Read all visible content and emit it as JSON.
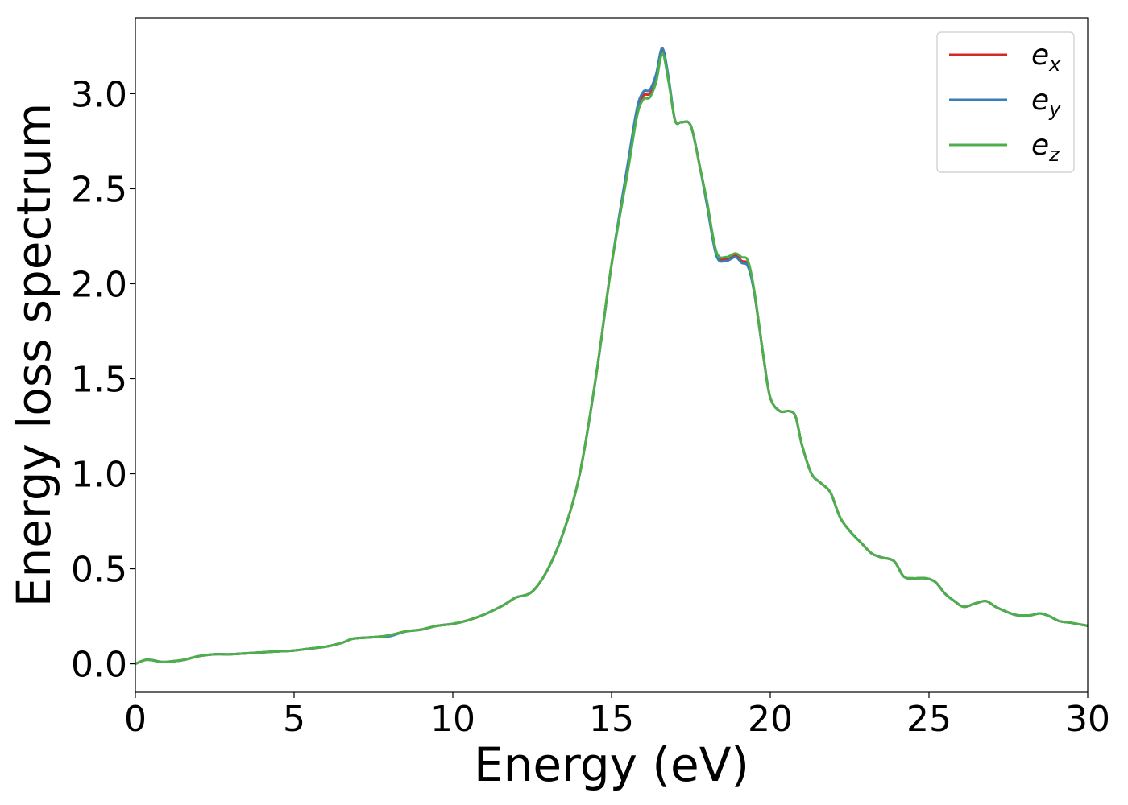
{
  "chart_data": {
    "type": "line",
    "title": "",
    "xlabel": "Energy (eV)",
    "ylabel": "Energy loss spectrum",
    "xlim": [
      0,
      30
    ],
    "ylim": [
      -0.15,
      3.4
    ],
    "xticks": [
      0,
      5,
      10,
      15,
      20,
      25,
      30
    ],
    "xtick_labels": [
      "0",
      "5",
      "10",
      "15",
      "20",
      "25",
      "30"
    ],
    "yticks": [
      0.0,
      0.5,
      1.0,
      1.5,
      2.0,
      2.5,
      3.0
    ],
    "ytick_labels": [
      "0.0",
      "0.5",
      "1.0",
      "1.5",
      "2.0",
      "2.5",
      "3.0"
    ],
    "grid": false,
    "legend_position": "top-right",
    "x": [
      0,
      0.3,
      0.5,
      0.8,
      1.0,
      1.5,
      2.0,
      2.5,
      3.0,
      3.5,
      4.0,
      4.5,
      5.0,
      5.5,
      6.0,
      6.5,
      6.8,
      7.0,
      7.5,
      8.0,
      8.5,
      9.0,
      9.5,
      10.0,
      10.5,
      11.0,
      11.5,
      11.8,
      12.0,
      12.5,
      13.0,
      13.5,
      14.0,
      14.5,
      15.0,
      15.5,
      15.8,
      16.0,
      16.2,
      16.4,
      16.6,
      16.8,
      17.0,
      17.2,
      17.5,
      17.8,
      18.0,
      18.3,
      18.6,
      18.9,
      19.1,
      19.3,
      19.5,
      19.8,
      20.0,
      20.3,
      20.6,
      20.8,
      21.0,
      21.3,
      21.6,
      21.9,
      22.2,
      22.5,
      22.9,
      23.2,
      23.5,
      23.9,
      24.2,
      24.5,
      24.9,
      25.2,
      25.5,
      25.8,
      26.1,
      26.5,
      26.8,
      27.1,
      27.5,
      27.8,
      28.2,
      28.5,
      28.8,
      29.1,
      29.5,
      30.0
    ],
    "series": [
      {
        "name": "e_x",
        "label_base": "e",
        "label_sub": "x",
        "color": "#d62728",
        "values": [
          0.0,
          0.02,
          0.02,
          0.01,
          0.01,
          0.02,
          0.04,
          0.05,
          0.05,
          0.055,
          0.06,
          0.065,
          0.07,
          0.08,
          0.09,
          0.11,
          0.13,
          0.135,
          0.14,
          0.15,
          0.17,
          0.18,
          0.2,
          0.21,
          0.23,
          0.26,
          0.3,
          0.33,
          0.35,
          0.38,
          0.5,
          0.7,
          1.0,
          1.5,
          2.1,
          2.6,
          2.9,
          2.99,
          3.0,
          3.08,
          3.23,
          3.07,
          2.86,
          2.85,
          2.83,
          2.6,
          2.43,
          2.16,
          2.13,
          2.15,
          2.12,
          2.1,
          1.95,
          1.6,
          1.4,
          1.33,
          1.33,
          1.3,
          1.15,
          1.0,
          0.95,
          0.9,
          0.77,
          0.7,
          0.63,
          0.58,
          0.56,
          0.54,
          0.46,
          0.45,
          0.45,
          0.43,
          0.37,
          0.33,
          0.3,
          0.32,
          0.33,
          0.3,
          0.27,
          0.255,
          0.255,
          0.265,
          0.25,
          0.225,
          0.215,
          0.2
        ]
      },
      {
        "name": "e_y",
        "label_base": "e",
        "label_sub": "y",
        "color": "#3a7eb8",
        "values": [
          0.0,
          0.02,
          0.02,
          0.01,
          0.01,
          0.02,
          0.04,
          0.05,
          0.05,
          0.055,
          0.06,
          0.065,
          0.07,
          0.08,
          0.09,
          0.11,
          0.13,
          0.135,
          0.14,
          0.145,
          0.17,
          0.18,
          0.2,
          0.21,
          0.23,
          0.26,
          0.3,
          0.33,
          0.35,
          0.38,
          0.5,
          0.7,
          1.0,
          1.5,
          2.1,
          2.62,
          2.92,
          3.01,
          3.02,
          3.1,
          3.24,
          3.08,
          2.86,
          2.85,
          2.83,
          2.6,
          2.42,
          2.15,
          2.12,
          2.14,
          2.11,
          2.09,
          1.95,
          1.6,
          1.4,
          1.33,
          1.33,
          1.3,
          1.15,
          1.0,
          0.95,
          0.9,
          0.77,
          0.7,
          0.63,
          0.58,
          0.56,
          0.54,
          0.46,
          0.45,
          0.45,
          0.43,
          0.37,
          0.33,
          0.3,
          0.32,
          0.33,
          0.3,
          0.27,
          0.255,
          0.255,
          0.265,
          0.25,
          0.225,
          0.215,
          0.2
        ]
      },
      {
        "name": "e_z",
        "label_base": "e",
        "label_sub": "z",
        "color": "#4daf4a",
        "values": [
          0.0,
          0.02,
          0.02,
          0.01,
          0.01,
          0.02,
          0.04,
          0.05,
          0.05,
          0.055,
          0.06,
          0.065,
          0.07,
          0.08,
          0.09,
          0.11,
          0.13,
          0.135,
          0.14,
          0.15,
          0.17,
          0.18,
          0.2,
          0.21,
          0.23,
          0.26,
          0.3,
          0.33,
          0.35,
          0.38,
          0.5,
          0.7,
          1.0,
          1.5,
          2.1,
          2.58,
          2.88,
          2.97,
          2.98,
          3.06,
          3.21,
          3.06,
          2.86,
          2.85,
          2.83,
          2.6,
          2.44,
          2.17,
          2.14,
          2.16,
          2.14,
          2.12,
          1.96,
          1.6,
          1.4,
          1.33,
          1.33,
          1.3,
          1.15,
          1.0,
          0.95,
          0.9,
          0.77,
          0.7,
          0.63,
          0.58,
          0.56,
          0.54,
          0.46,
          0.45,
          0.45,
          0.43,
          0.37,
          0.33,
          0.3,
          0.32,
          0.33,
          0.3,
          0.27,
          0.255,
          0.255,
          0.265,
          0.25,
          0.225,
          0.215,
          0.2
        ]
      }
    ]
  }
}
